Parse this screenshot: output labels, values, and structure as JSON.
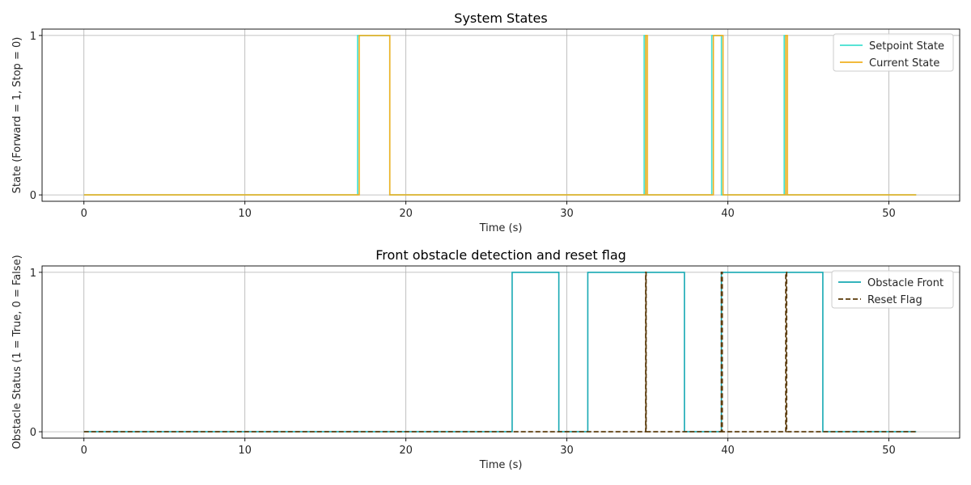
{
  "chart_data": [
    {
      "type": "line",
      "title": "System States",
      "xlabel": "Time (s)",
      "ylabel": "State (Forward = 1, Stop = 0)",
      "xlim": [
        -2.6,
        54.4
      ],
      "ylim": [
        -0.04,
        1.04
      ],
      "xticks": [
        0,
        10,
        20,
        30,
        40,
        50
      ],
      "yticks": [
        0,
        1
      ],
      "grid": true,
      "legend_position": "top-right",
      "series": [
        {
          "name": "Setpoint State",
          "color": "#40e0d0",
          "dash": "solid",
          "points": [
            [
              0,
              0
            ],
            [
              17,
              0
            ],
            [
              17,
              1
            ],
            [
              19,
              1
            ],
            [
              19,
              0
            ],
            [
              34.8,
              0
            ],
            [
              34.8,
              1
            ],
            [
              34.9,
              1
            ],
            [
              34.9,
              0
            ],
            [
              39.0,
              0
            ],
            [
              39.0,
              1
            ],
            [
              39.6,
              1
            ],
            [
              39.6,
              0
            ],
            [
              43.5,
              0
            ],
            [
              43.5,
              1
            ],
            [
              43.6,
              1
            ],
            [
              43.6,
              0
            ],
            [
              51.7,
              0
            ]
          ]
        },
        {
          "name": "Current State",
          "color": "#f0b020",
          "dash": "solid",
          "points": [
            [
              0,
              0
            ],
            [
              17.1,
              0
            ],
            [
              17.1,
              1
            ],
            [
              19,
              1
            ],
            [
              19,
              0
            ],
            [
              34.9,
              0
            ],
            [
              34.9,
              1
            ],
            [
              35.0,
              1
            ],
            [
              35.0,
              0
            ],
            [
              39.1,
              0
            ],
            [
              39.1,
              1
            ],
            [
              39.7,
              1
            ],
            [
              39.7,
              0
            ],
            [
              43.6,
              0
            ],
            [
              43.6,
              1
            ],
            [
              43.7,
              1
            ],
            [
              43.7,
              0
            ],
            [
              51.7,
              0
            ]
          ]
        }
      ]
    },
    {
      "type": "line",
      "title": "Front obstacle detection and reset flag",
      "xlabel": "Time (s)",
      "ylabel": "Obstacle Status (1 = True, 0 = False)",
      "xlim": [
        -2.6,
        54.4
      ],
      "ylim": [
        -0.04,
        1.04
      ],
      "xticks": [
        0,
        10,
        20,
        30,
        40,
        50
      ],
      "yticks": [
        0,
        1
      ],
      "grid": true,
      "legend_position": "top-right",
      "series": [
        {
          "name": "Obstacle Front",
          "color": "#17a9b3",
          "dash": "solid",
          "points": [
            [
              0,
              0
            ],
            [
              26.6,
              0
            ],
            [
              26.6,
              1
            ],
            [
              29.5,
              1
            ],
            [
              29.5,
              0
            ],
            [
              31.3,
              0
            ],
            [
              31.3,
              1
            ],
            [
              37.3,
              1
            ],
            [
              37.3,
              0
            ],
            [
              39.6,
              0
            ],
            [
              39.6,
              1
            ],
            [
              45.9,
              1
            ],
            [
              45.9,
              0
            ],
            [
              51.7,
              0
            ]
          ]
        },
        {
          "name": "Reset Flag",
          "color": "#5a3a0a",
          "dash": "dashed",
          "points": [
            [
              0,
              0
            ],
            [
              34.9,
              0
            ],
            [
              34.9,
              1
            ],
            [
              34.92,
              1
            ],
            [
              34.92,
              0
            ],
            [
              39.6,
              0
            ],
            [
              39.6,
              1
            ],
            [
              39.65,
              1
            ],
            [
              39.65,
              0
            ],
            [
              43.6,
              0
            ],
            [
              43.6,
              1
            ],
            [
              43.65,
              1
            ],
            [
              43.65,
              0
            ],
            [
              51.7,
              0
            ]
          ]
        }
      ]
    }
  ]
}
